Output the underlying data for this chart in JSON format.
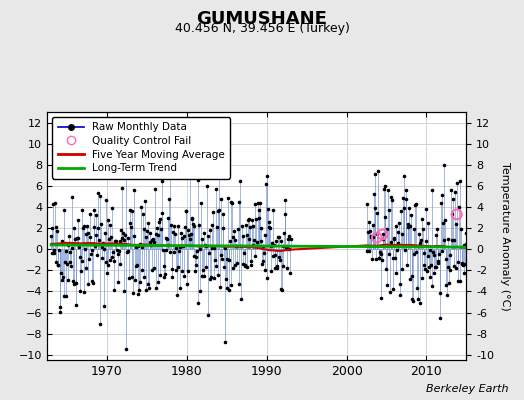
{
  "title": "GUMUSHANE",
  "subtitle": "40.456 N, 39.456 E (Turkey)",
  "ylabel": "Temperature Anomaly (°C)",
  "xlabel_credit": "Berkeley Earth",
  "ylim": [
    -10.5,
    13
  ],
  "yticks": [
    -10,
    -8,
    -6,
    -4,
    -2,
    0,
    2,
    4,
    6,
    8,
    10,
    12
  ],
  "fig_bg_color": "#e8e8e8",
  "plot_bg_color": "#ffffff",
  "line_color": "#6688cc",
  "dot_color": "#000000",
  "ma_color": "#cc0000",
  "trend_color": "#00aa00",
  "qc_color": "#ff69b4",
  "legend_labels": [
    "Raw Monthly Data",
    "Quality Control Fail",
    "Five Year Moving Average",
    "Long-Term Trend"
  ],
  "start_year": 1963.0,
  "end_year": 2015.0,
  "gap_start": 1993.0,
  "gap_end": 2002.5,
  "seed": 42,
  "xticks": [
    1970,
    1980,
    1990,
    2000,
    2010
  ],
  "qc_fail_times": [
    2003.8,
    2004.5,
    2013.8
  ],
  "qc_fail_values": [
    1.1,
    1.4,
    3.3
  ]
}
